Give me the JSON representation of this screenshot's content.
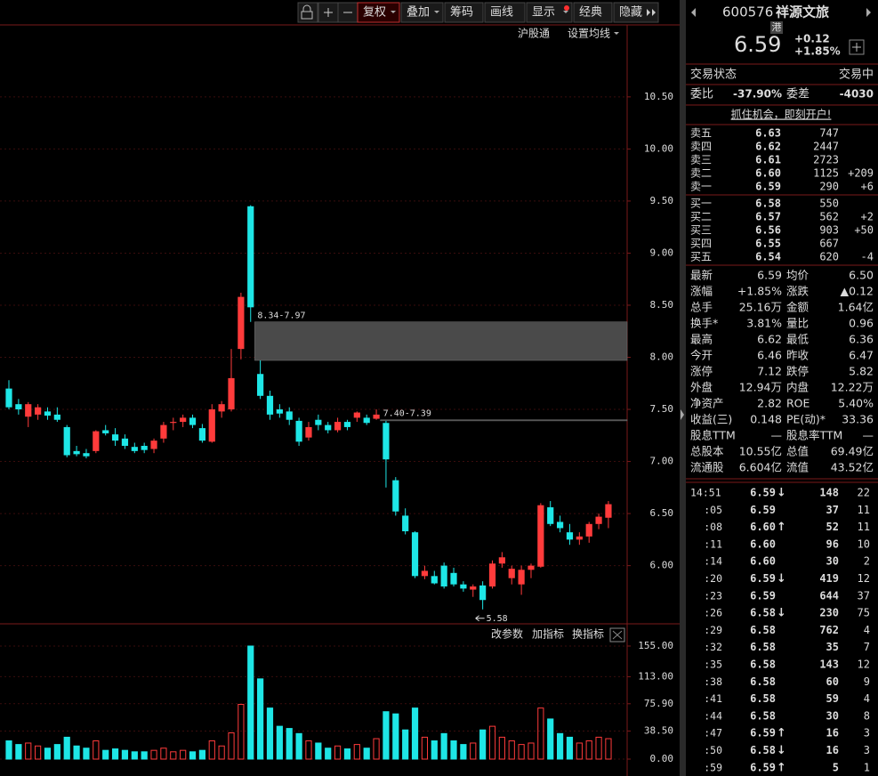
{
  "toolbar": {
    "buttons": [
      "复权",
      "叠加",
      "筹码",
      "画线",
      "显示",
      "经典",
      "隐藏"
    ]
  },
  "chart_links": [
    "沪股通",
    "设置均线"
  ],
  "kline": {
    "type": "candlestick",
    "ylim": [
      5.45,
      11.43
    ],
    "yticks": [
      {
        "value": 6,
        "label": "6.00"
      },
      {
        "value": 6.5,
        "label": "6.50"
      },
      {
        "value": 7,
        "label": "7.00"
      },
      {
        "value": 7.5,
        "label": "7.50"
      },
      {
        "value": 8,
        "label": "8.00"
      },
      {
        "value": 8.5,
        "label": "8.50"
      },
      {
        "value": 9,
        "label": "9.00"
      },
      {
        "value": 9.5,
        "label": "9.50"
      },
      {
        "value": 10,
        "label": "10.00"
      },
      {
        "value": 10.5,
        "label": "10.50"
      }
    ],
    "grid": true,
    "up_color": "#ff3b3b",
    "down_color": "#1ee6e6",
    "open": [
      7.7,
      7.55,
      7.43,
      7.45,
      7.48,
      7.45,
      7.33,
      7.1,
      7.08,
      7.1,
      7.3,
      7.26,
      7.22,
      7.14,
      7.15,
      7.12,
      7.22,
      7.37,
      7.38,
      7.42,
      7.32,
      7.19,
      7.48,
      7.5,
      8.08,
      9.45,
      7.84,
      7.63,
      7.5,
      7.48,
      7.39,
      7.23,
      7.4,
      7.35,
      7.3,
      7.38,
      7.42,
      7.42,
      7.41,
      7.37,
      6.82,
      6.48,
      6.32,
      5.9,
      5.9,
      6.0,
      5.93,
      5.82,
      5.77,
      5.81,
      5.8,
      6.02,
      5.88,
      5.82,
      5.96,
      5.99,
      6.56,
      6.42,
      6.32,
      6.25,
      6.28,
      6.4,
      6.46
    ],
    "high": [
      7.78,
      7.6,
      7.57,
      7.55,
      7.52,
      7.52,
      7.35,
      7.15,
      7.12,
      7.3,
      7.35,
      7.32,
      7.26,
      7.18,
      7.18,
      7.22,
      7.38,
      7.42,
      7.45,
      7.45,
      7.36,
      7.55,
      7.58,
      8.08,
      8.62,
      9.46,
      7.97,
      7.68,
      7.55,
      7.52,
      7.42,
      7.38,
      7.45,
      7.38,
      7.42,
      7.4,
      7.48,
      7.45,
      7.5,
      7.39,
      6.85,
      6.55,
      6.33,
      6.0,
      5.95,
      6.03,
      5.98,
      5.85,
      5.82,
      5.85,
      6.05,
      6.13,
      6.0,
      6.0,
      6.02,
      6.6,
      6.62,
      6.48,
      6.4,
      6.32,
      6.42,
      6.5,
      6.62
    ],
    "low": [
      7.5,
      7.45,
      7.33,
      7.4,
      7.4,
      7.38,
      7.04,
      7.05,
      7.03,
      7.08,
      7.25,
      7.15,
      7.12,
      7.08,
      7.08,
      7.08,
      7.18,
      7.3,
      7.33,
      7.32,
      7.18,
      7.18,
      7.42,
      7.48,
      7.98,
      8.34,
      7.6,
      7.4,
      7.42,
      7.35,
      7.15,
      7.2,
      7.3,
      7.27,
      7.28,
      7.3,
      7.38,
      7.35,
      7.4,
      6.75,
      6.48,
      6.3,
      5.88,
      5.87,
      5.82,
      5.78,
      5.8,
      5.75,
      5.7,
      5.58,
      5.78,
      5.98,
      5.82,
      5.72,
      5.88,
      5.98,
      6.38,
      6.32,
      6.2,
      6.2,
      6.22,
      6.35,
      6.36
    ],
    "close": [
      7.52,
      7.5,
      7.55,
      7.52,
      7.44,
      7.4,
      7.06,
      7.07,
      7.05,
      7.29,
      7.27,
      7.2,
      7.15,
      7.1,
      7.11,
      7.2,
      7.35,
      7.38,
      7.42,
      7.35,
      7.2,
      7.5,
      7.55,
      7.8,
      8.58,
      8.48,
      7.63,
      7.45,
      7.46,
      7.4,
      7.19,
      7.33,
      7.35,
      7.3,
      7.38,
      7.33,
      7.47,
      7.37,
      7.45,
      7.02,
      6.52,
      6.33,
      5.9,
      5.95,
      5.83,
      5.8,
      5.82,
      5.78,
      5.8,
      5.67,
      6.02,
      6.08,
      5.97,
      5.96,
      6.0,
      6.58,
      6.4,
      6.36,
      6.25,
      6.28,
      6.4,
      6.47,
      6.59
    ],
    "gaps": [
      {
        "label": "8.34-7.97",
        "top": 8.34,
        "bottom": 7.97
      },
      {
        "label": "7.40-7.39",
        "top": 7.4,
        "bottom": 7.39
      }
    ],
    "period_low": 5.58
  },
  "volume": {
    "type": "bar",
    "ylim": [
      0,
      180.6
    ],
    "yticks": [
      {
        "value": 0,
        "label": "0.00"
      },
      {
        "value": 38.5,
        "label": "38.50"
      },
      {
        "value": 75.9,
        "label": "75.90"
      },
      {
        "value": 113,
        "label": "113.00"
      },
      {
        "value": 155,
        "label": "155.00"
      }
    ],
    "grid": true,
    "values": [
      25,
      20,
      22,
      18,
      15,
      20,
      30,
      18,
      15,
      25,
      12,
      14,
      12,
      10,
      10,
      12,
      15,
      10,
      12,
      10,
      12,
      25,
      18,
      36,
      75,
      155,
      110,
      70,
      45,
      42,
      35,
      25,
      22,
      15,
      18,
      14,
      20,
      15,
      28,
      65,
      62,
      40,
      70,
      30,
      25,
      35,
      25,
      20,
      22,
      40,
      45,
      30,
      25,
      20,
      22,
      70,
      55,
      35,
      30,
      22,
      25,
      30,
      28
    ],
    "buttons": [
      "改参数",
      "加指标",
      "换指标"
    ]
  },
  "quote": {
    "code": "600576",
    "name": "祥源文旅",
    "tag": "港",
    "price": "6.59",
    "change": "+0.12",
    "change_pct": "+1.85%",
    "status_label": "交易状态",
    "status": "交易中",
    "ratio_label": "委比",
    "ratio": "-37.90%",
    "diff_label": "委差",
    "diff": "-4030",
    "banner": "抓住机会，即刻开户!"
  },
  "asks": [
    {
      "label": "卖五",
      "price": "6.63",
      "volume": "747"
    },
    {
      "label": "卖四",
      "price": "6.62",
      "volume": "2447"
    },
    {
      "label": "卖三",
      "price": "6.61",
      "volume": "2723"
    },
    {
      "label": "卖二",
      "price": "6.60",
      "volume": "1125",
      "change": "+209",
      "change_color": "#ff4a4a"
    },
    {
      "label": "卖一",
      "price": "6.59",
      "volume": "290",
      "change": "+6",
      "change_color": "#ff4a4a"
    }
  ],
  "bids": [
    {
      "label": "买一",
      "price": "6.58",
      "volume": "550"
    },
    {
      "label": "买二",
      "price": "6.57",
      "volume": "562",
      "change": "+2",
      "change_color": "#ff4a4a"
    },
    {
      "label": "买三",
      "price": "6.56",
      "volume": "903",
      "change": "+50",
      "change_color": "#ff4a4a"
    },
    {
      "label": "买四",
      "price": "6.55",
      "volume": "667"
    },
    {
      "label": "买五",
      "price": "6.54",
      "volume": "620",
      "change": "-4",
      "change_color": "#22dd22"
    }
  ],
  "stats": [
    [
      {
        "label": "最新",
        "value": "6.59",
        "color": "#ff4a4a"
      },
      {
        "label": "均价",
        "value": "6.50",
        "color": "#ff4a4a"
      }
    ],
    [
      {
        "label": "涨幅",
        "value": "+1.85%",
        "color": "#ff4a4a"
      },
      {
        "label": "涨跌",
        "value": "▲0.12",
        "color": "#ff4a4a"
      }
    ],
    [
      {
        "label": "总手",
        "value": "25.16万",
        "color": "#e8e8e8"
      },
      {
        "label": "金额",
        "value": "1.64亿",
        "color": "#33ccff"
      }
    ],
    [
      {
        "label": "换手*",
        "value": "3.81%",
        "color": "#e8e8e8"
      },
      {
        "label": "量比",
        "value": "0.96",
        "color": "#e8e8e8"
      }
    ],
    [
      {
        "label": "最高",
        "value": "6.62",
        "color": "#ff4a4a"
      },
      {
        "label": "最低",
        "value": "6.36",
        "color": "#22dd22"
      }
    ],
    [
      {
        "label": "今开",
        "value": "6.46",
        "color": "#22dd22"
      },
      {
        "label": "昨收",
        "value": "6.47",
        "color": "#e8e8e8"
      }
    ],
    [
      {
        "label": "涨停",
        "value": "7.12",
        "color": "#ff4a4a"
      },
      {
        "label": "跌停",
        "value": "5.82",
        "color": "#22dd22"
      }
    ],
    [
      {
        "label": "外盘",
        "value": "12.94万",
        "color": "#ff4a4a"
      },
      {
        "label": "内盘",
        "value": "12.22万",
        "color": "#22dd22"
      }
    ],
    [
      {
        "label": "净资产",
        "value": "2.82",
        "color": "#e8e8e8"
      },
      {
        "label": "ROE",
        "value": "5.40%",
        "color": "#e8e8e8"
      }
    ],
    [
      {
        "label": "收益(三)",
        "value": "0.148",
        "color": "#e8e8e8"
      },
      {
        "label": "PE(动)*",
        "value": "33.36",
        "color": "#e8e8e8"
      }
    ],
    [
      {
        "label": "股息TTM",
        "value": "—",
        "color": "#e8e8e8"
      },
      {
        "label": "股息率TTM",
        "value": "—",
        "color": "#e8e8e8"
      }
    ],
    [
      {
        "label": "总股本",
        "value": "10.55亿",
        "color": "#e8e8e8"
      },
      {
        "label": "总值",
        "value": "69.49亿",
        "color": "#e8e8e8"
      }
    ],
    [
      {
        "label": "流通股",
        "value": "6.604亿",
        "color": "#e8e8e8"
      },
      {
        "label": "流值",
        "value": "43.52亿",
        "color": "#e8e8e8"
      }
    ]
  ],
  "ticks": [
    {
      "time": "14:51",
      "price": "6.59",
      "arrow": "↓",
      "volume": "148",
      "count": "22",
      "side": "sell"
    },
    {
      "time": ":05",
      "price": "6.59",
      "volume": "37",
      "count": "11",
      "side": "sell"
    },
    {
      "time": ":08",
      "price": "6.60",
      "arrow": "↑",
      "volume": "52",
      "count": "11",
      "side": "buy"
    },
    {
      "time": ":11",
      "price": "6.60",
      "volume": "96",
      "count": "10",
      "side": "buy"
    },
    {
      "time": ":14",
      "price": "6.60",
      "volume": "30",
      "count": "2",
      "side": "buy"
    },
    {
      "time": ":20",
      "price": "6.59",
      "arrow": "↓",
      "volume": "419",
      "count": "12",
      "side": "sell"
    },
    {
      "time": ":23",
      "price": "6.59",
      "volume": "644",
      "count": "37",
      "side": "buy"
    },
    {
      "time": ":26",
      "price": "6.58",
      "arrow": "↓",
      "volume": "230",
      "count": "75",
      "side": "sell"
    },
    {
      "time": ":29",
      "price": "6.58",
      "volume": "762",
      "count": "4",
      "side": "sell"
    },
    {
      "time": ":32",
      "price": "6.58",
      "volume": "35",
      "count": "7",
      "side": "sell"
    },
    {
      "time": ":35",
      "price": "6.58",
      "volume": "143",
      "count": "12",
      "side": "sell"
    },
    {
      "time": ":38",
      "price": "6.58",
      "volume": "60",
      "count": "9",
      "side": "buy"
    },
    {
      "time": ":41",
      "price": "6.58",
      "volume": "59",
      "count": "4",
      "side": "sell"
    },
    {
      "time": ":44",
      "price": "6.58",
      "volume": "30",
      "count": "8",
      "side": "sell"
    },
    {
      "time": ":47",
      "price": "6.59",
      "arrow": "↑",
      "volume": "16",
      "count": "3",
      "side": "buy"
    },
    {
      "time": ":50",
      "price": "6.58",
      "arrow": "↓",
      "volume": "16",
      "count": "3",
      "side": "sell"
    },
    {
      "time": ":59",
      "price": "6.59",
      "arrow": "↑",
      "volume": "5",
      "count": "1",
      "side": "buy"
    }
  ]
}
